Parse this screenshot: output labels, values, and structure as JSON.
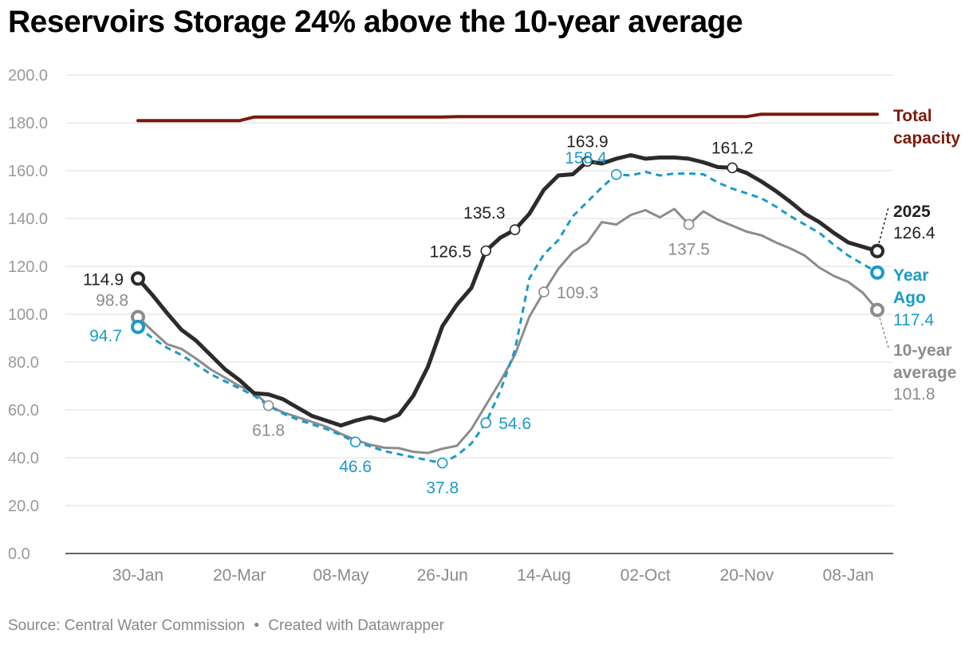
{
  "title": "Reservoirs Storage 24% above the 10-year average",
  "footer": {
    "source": "Source: Central Water Commission",
    "separator": "•",
    "created": "Created with Datawrapper"
  },
  "chart_data": {
    "type": "line",
    "title": "Reservoirs Storage 24% above the 10-year average",
    "xlabel": "",
    "ylabel": "",
    "ylim": [
      0,
      200
    ],
    "yticks": [
      "0.0",
      "20.0",
      "40.0",
      "60.0",
      "80.0",
      "100.0",
      "120.0",
      "140.0",
      "160.0",
      "180.0",
      "200.0"
    ],
    "xticks": [
      "30-Jan",
      "20-Mar",
      "08-May",
      "26-Jun",
      "14-Aug",
      "02-Oct",
      "20-Nov",
      "08-Jan"
    ],
    "x_start": "2025-01-30",
    "x_end": "2026-01-22",
    "grid": true,
    "legend": "inline labels at line ends (right)",
    "series": [
      {
        "key": "capacity",
        "name_lines": [
          "Total",
          "capacity"
        ],
        "color": "#7a1a0a",
        "style": "solid",
        "points": [
          [
            "2025-01-30",
            180.9
          ],
          [
            "2025-03-20",
            180.9
          ],
          [
            "2025-03-27",
            182.4
          ],
          [
            "2025-06-26",
            182.4
          ],
          [
            "2025-07-03",
            182.6
          ],
          [
            "2025-11-20",
            182.6
          ],
          [
            "2025-11-27",
            183.6
          ],
          [
            "2026-01-22",
            183.6
          ]
        ],
        "markers": [],
        "end_value": null
      },
      {
        "key": "ten_year",
        "name_lines": [
          "10-year",
          "average"
        ],
        "color": "#8c8c8c",
        "style": "solid",
        "points": [
          [
            "2025-01-30",
            98.8
          ],
          [
            "2025-02-06",
            93
          ],
          [
            "2025-02-13",
            87.5
          ],
          [
            "2025-02-20",
            85.5
          ],
          [
            "2025-02-27",
            81.5
          ],
          [
            "2025-03-06",
            77
          ],
          [
            "2025-03-13",
            73.5
          ],
          [
            "2025-03-20",
            70
          ],
          [
            "2025-03-27",
            67.5
          ],
          [
            "2025-04-03",
            61.8
          ],
          [
            "2025-04-10",
            59
          ],
          [
            "2025-04-17",
            57
          ],
          [
            "2025-04-24",
            55
          ],
          [
            "2025-05-01",
            53
          ],
          [
            "2025-05-08",
            50
          ],
          [
            "2025-05-15",
            47.5
          ],
          [
            "2025-05-22",
            45.5
          ],
          [
            "2025-05-29",
            44.2
          ],
          [
            "2025-06-05",
            44
          ],
          [
            "2025-06-12",
            42.5
          ],
          [
            "2025-06-19",
            42
          ],
          [
            "2025-06-26",
            43.8
          ],
          [
            "2025-07-03",
            45
          ],
          [
            "2025-07-10",
            52
          ],
          [
            "2025-07-17",
            62
          ],
          [
            "2025-07-24",
            72
          ],
          [
            "2025-07-31",
            83
          ],
          [
            "2025-08-07",
            99
          ],
          [
            "2025-08-14",
            109.3
          ],
          [
            "2025-08-21",
            119
          ],
          [
            "2025-08-28",
            126
          ],
          [
            "2025-09-04",
            130
          ],
          [
            "2025-09-11",
            138.5
          ],
          [
            "2025-09-18",
            137.5
          ],
          [
            "2025-09-25",
            141.5
          ],
          [
            "2025-10-02",
            143.5
          ],
          [
            "2025-10-09",
            140.5
          ],
          [
            "2025-10-16",
            144
          ],
          [
            "2025-10-23",
            137.5
          ],
          [
            "2025-10-30",
            143
          ],
          [
            "2025-11-06",
            139.5
          ],
          [
            "2025-11-13",
            137
          ],
          [
            "2025-11-20",
            134.5
          ],
          [
            "2025-11-27",
            133
          ],
          [
            "2025-12-04",
            130
          ],
          [
            "2025-12-11",
            127.5
          ],
          [
            "2025-12-18",
            124.5
          ],
          [
            "2025-12-25",
            119.5
          ],
          [
            "2026-01-01",
            116
          ],
          [
            "2026-01-08",
            113.5
          ],
          [
            "2026-01-15",
            109
          ],
          [
            "2026-01-22",
            101.8
          ]
        ],
        "markers": [
          {
            "date": "2025-01-30",
            "value": 98.8,
            "label": "98.8",
            "pos": "left-up",
            "big": true
          },
          {
            "date": "2025-04-03",
            "value": 61.8,
            "label": "61.8",
            "pos": "below"
          },
          {
            "date": "2025-08-14",
            "value": 109.3,
            "label": "109.3",
            "pos": "right"
          },
          {
            "date": "2025-10-23",
            "value": 137.5,
            "label": "137.5",
            "pos": "below"
          },
          {
            "date": "2026-01-22",
            "value": 101.8,
            "label": "",
            "pos": "none",
            "big": true
          }
        ],
        "end_value": "101.8"
      },
      {
        "key": "year_ago",
        "name_lines": [
          "Year",
          "Ago"
        ],
        "color": "#1a9bc8",
        "style": "dashed",
        "points": [
          [
            "2025-01-30",
            94.7
          ],
          [
            "2025-02-06",
            90
          ],
          [
            "2025-02-13",
            86
          ],
          [
            "2025-02-20",
            83
          ],
          [
            "2025-02-27",
            79
          ],
          [
            "2025-03-06",
            75
          ],
          [
            "2025-03-13",
            72
          ],
          [
            "2025-03-20",
            69
          ],
          [
            "2025-03-27",
            66
          ],
          [
            "2025-04-03",
            61.8
          ],
          [
            "2025-04-10",
            58.5
          ],
          [
            "2025-04-17",
            56
          ],
          [
            "2025-04-24",
            54
          ],
          [
            "2025-05-01",
            52
          ],
          [
            "2025-05-08",
            49.5
          ],
          [
            "2025-05-15",
            46.6
          ],
          [
            "2025-05-22",
            44.8
          ],
          [
            "2025-05-29",
            42.8
          ],
          [
            "2025-06-05",
            41.5
          ],
          [
            "2025-06-12",
            40.2
          ],
          [
            "2025-06-19",
            39
          ],
          [
            "2025-06-26",
            37.8
          ],
          [
            "2025-07-03",
            41
          ],
          [
            "2025-07-10",
            46
          ],
          [
            "2025-07-17",
            54.6
          ],
          [
            "2025-07-24",
            68
          ],
          [
            "2025-07-31",
            85
          ],
          [
            "2025-08-07",
            115
          ],
          [
            "2025-08-14",
            125
          ],
          [
            "2025-08-21",
            131
          ],
          [
            "2025-08-28",
            141
          ],
          [
            "2025-09-04",
            147
          ],
          [
            "2025-09-11",
            153
          ],
          [
            "2025-09-18",
            158.4
          ],
          [
            "2025-09-25",
            158
          ],
          [
            "2025-10-02",
            159.5
          ],
          [
            "2025-10-09",
            158
          ],
          [
            "2025-10-16",
            158.8
          ],
          [
            "2025-10-23",
            158.8
          ],
          [
            "2025-10-30",
            158.5
          ],
          [
            "2025-11-06",
            155
          ],
          [
            "2025-11-13",
            152.5
          ],
          [
            "2025-11-20",
            150.5
          ],
          [
            "2025-11-27",
            148.5
          ],
          [
            "2025-12-04",
            145
          ],
          [
            "2025-12-11",
            141
          ],
          [
            "2025-12-18",
            137.5
          ],
          [
            "2025-12-25",
            134
          ],
          [
            "2026-01-01",
            129
          ],
          [
            "2026-01-08",
            124.5
          ],
          [
            "2026-01-15",
            121
          ],
          [
            "2026-01-22",
            117.4
          ]
        ],
        "markers": [
          {
            "date": "2025-01-30",
            "value": 94.7,
            "label": "94.7",
            "pos": "left-down",
            "big": true
          },
          {
            "date": "2025-05-15",
            "value": 46.6,
            "label": "46.6",
            "pos": "below"
          },
          {
            "date": "2025-06-26",
            "value": 37.8,
            "label": "37.8",
            "pos": "below"
          },
          {
            "date": "2025-07-17",
            "value": 54.6,
            "label": "54.6",
            "pos": "right"
          },
          {
            "date": "2025-09-18",
            "value": 158.4,
            "label": "158.4",
            "pos": "left-up"
          },
          {
            "date": "2026-01-22",
            "value": 117.4,
            "label": "",
            "pos": "none",
            "big": true
          }
        ],
        "end_value": "117.4"
      },
      {
        "key": "current",
        "name_lines": [
          "2025"
        ],
        "color": "#2b2b2b",
        "style": "solid",
        "points": [
          [
            "2025-01-30",
            114.9
          ],
          [
            "2025-02-06",
            108
          ],
          [
            "2025-02-13",
            100.5
          ],
          [
            "2025-02-20",
            93.5
          ],
          [
            "2025-02-27",
            89
          ],
          [
            "2025-03-06",
            83
          ],
          [
            "2025-03-13",
            77
          ],
          [
            "2025-03-20",
            72.5
          ],
          [
            "2025-03-27",
            67
          ],
          [
            "2025-04-03",
            66.5
          ],
          [
            "2025-04-10",
            64.5
          ],
          [
            "2025-04-17",
            61
          ],
          [
            "2025-04-24",
            57.5
          ],
          [
            "2025-05-01",
            55.5
          ],
          [
            "2025-05-08",
            53.5
          ],
          [
            "2025-05-15",
            55.5
          ],
          [
            "2025-05-22",
            57
          ],
          [
            "2025-05-29",
            55.5
          ],
          [
            "2025-06-05",
            58
          ],
          [
            "2025-06-12",
            66
          ],
          [
            "2025-06-19",
            78
          ],
          [
            "2025-06-26",
            95
          ],
          [
            "2025-07-03",
            104
          ],
          [
            "2025-07-10",
            111
          ],
          [
            "2025-07-17",
            126.5
          ],
          [
            "2025-07-24",
            132
          ],
          [
            "2025-07-31",
            135.3
          ],
          [
            "2025-08-07",
            142
          ],
          [
            "2025-08-14",
            152
          ],
          [
            "2025-08-21",
            158
          ],
          [
            "2025-08-28",
            158.5
          ],
          [
            "2025-09-04",
            163.9
          ],
          [
            "2025-09-11",
            163
          ],
          [
            "2025-09-18",
            165
          ],
          [
            "2025-09-25",
            166.5
          ],
          [
            "2025-10-02",
            165
          ],
          [
            "2025-10-09",
            165.5
          ],
          [
            "2025-10-16",
            165.5
          ],
          [
            "2025-10-23",
            165
          ],
          [
            "2025-10-30",
            163.5
          ],
          [
            "2025-11-06",
            161.5
          ],
          [
            "2025-11-13",
            161.2
          ],
          [
            "2025-11-20",
            159
          ],
          [
            "2025-11-27",
            155.5
          ],
          [
            "2025-12-04",
            151.5
          ],
          [
            "2025-12-11",
            147
          ],
          [
            "2025-12-18",
            142
          ],
          [
            "2025-12-25",
            138.5
          ],
          [
            "2026-01-01",
            134
          ],
          [
            "2026-01-08",
            130
          ],
          [
            "2026-01-22",
            126.4
          ]
        ],
        "markers": [
          {
            "date": "2025-01-30",
            "value": 114.9,
            "label": "114.9",
            "pos": "left",
            "big": true
          },
          {
            "date": "2025-07-17",
            "value": 126.5,
            "label": "126.5",
            "pos": "left"
          },
          {
            "date": "2025-07-31",
            "value": 135.3,
            "label": "135.3",
            "pos": "left-up"
          },
          {
            "date": "2025-09-04",
            "value": 163.9,
            "label": "163.9",
            "pos": "above"
          },
          {
            "date": "2025-11-13",
            "value": 161.2,
            "label": "161.2",
            "pos": "above"
          },
          {
            "date": "2026-01-22",
            "value": 126.4,
            "label": "",
            "pos": "none",
            "big": true
          }
        ],
        "end_value": "126.4"
      }
    ]
  }
}
